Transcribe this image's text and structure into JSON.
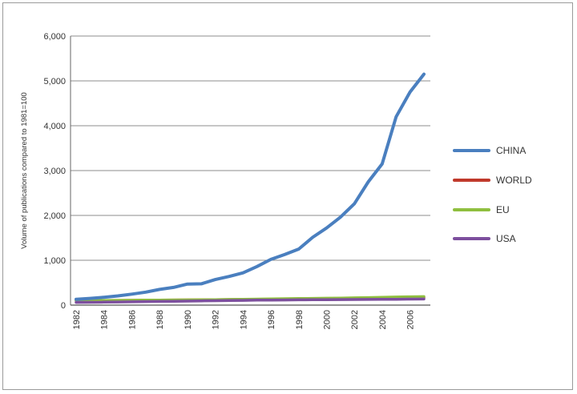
{
  "chart_data": {
    "type": "line",
    "ylabel": "Volume of publications compared to 1981=100",
    "xlabel": "",
    "ylim": [
      0,
      6000
    ],
    "yticks": [
      0,
      1000,
      2000,
      3000,
      4000,
      5000,
      6000
    ],
    "ytick_labels": [
      "0",
      "1,000",
      "2,000",
      "3,000",
      "4,000",
      "5,000",
      "6,000"
    ],
    "xlim": [
      1982,
      2007
    ],
    "xtick_labels": [
      "1982",
      "1984",
      "1986",
      "1988",
      "1990",
      "1992",
      "1994",
      "1996",
      "1998",
      "2000",
      "2002",
      "2004",
      "2006"
    ],
    "grid": true,
    "legend_position": "right",
    "x": [
      1982,
      1983,
      1984,
      1985,
      1986,
      1987,
      1988,
      1989,
      1990,
      1991,
      1992,
      1993,
      1994,
      1995,
      1996,
      1997,
      1998,
      1999,
      2000,
      2001,
      2002,
      2003,
      2004,
      2005,
      2006,
      2007
    ],
    "series": [
      {
        "name": "CHINA",
        "color": "#4a7fbf",
        "values": [
          130,
          150,
          175,
          205,
          245,
          290,
          350,
          395,
          470,
          475,
          570,
          640,
          720,
          860,
          1020,
          1130,
          1250,
          1510,
          1720,
          1960,
          2260,
          2750,
          3150,
          4200,
          4750,
          5150
        ]
      },
      {
        "name": "WORLD",
        "color": "#c0392b",
        "values": [
          100,
          102,
          104,
          106,
          108,
          110,
          112,
          114,
          116,
          118,
          120,
          123,
          126,
          129,
          132,
          134,
          136,
          139,
          142,
          145,
          148,
          152,
          156,
          160,
          164,
          168
        ]
      },
      {
        "name": "EU",
        "color": "#8fbf3f",
        "values": [
          100,
          102,
          104,
          106,
          108,
          110,
          112,
          114,
          116,
          118,
          122,
          126,
          130,
          134,
          138,
          142,
          146,
          150,
          154,
          158,
          162,
          168,
          174,
          180,
          186,
          190
        ]
      },
      {
        "name": "USA",
        "color": "#7d4f9e",
        "values": [
          60,
          63,
          66,
          70,
          74,
          78,
          82,
          86,
          90,
          94,
          98,
          102,
          106,
          110,
          113,
          115,
          117,
          119,
          121,
          123,
          125,
          127,
          129,
          131,
          134,
          136
        ]
      }
    ]
  }
}
